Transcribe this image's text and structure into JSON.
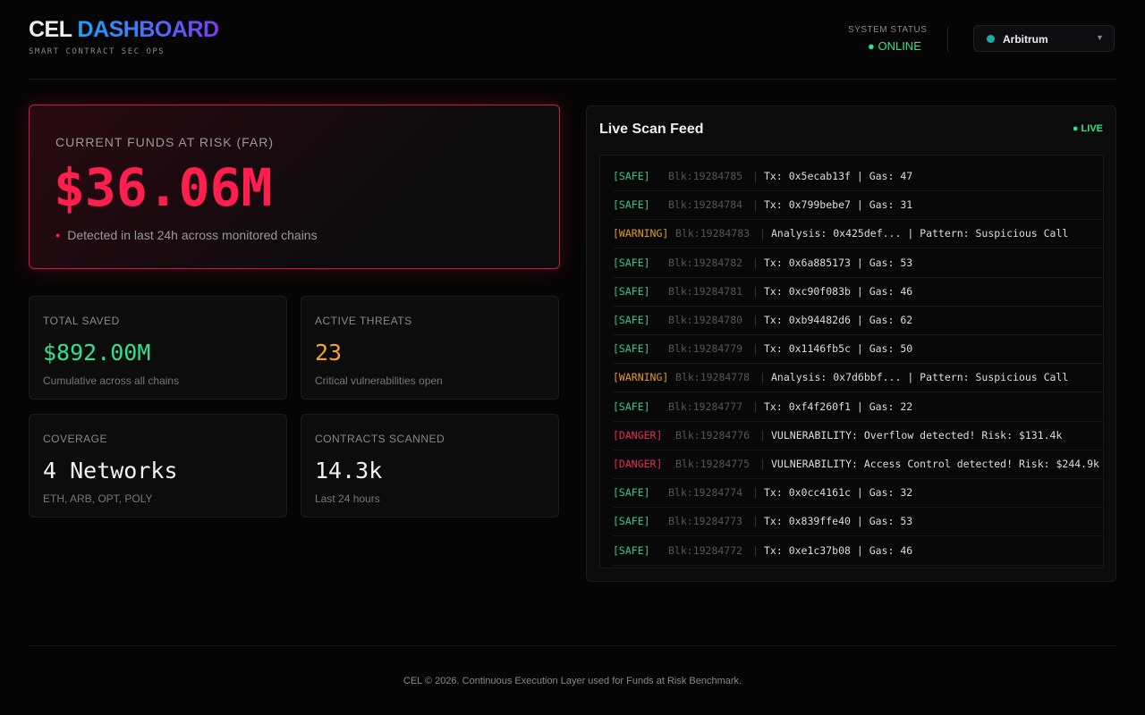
{
  "header": {
    "title_a": "CEL",
    "title_b": "DASHBOARD",
    "subtitle": "SMART CONTRACT SEC OPS",
    "status_label": "SYSTEM STATUS",
    "status_value": "ONLINE",
    "network": "Arbitrum"
  },
  "far": {
    "label": "CURRENT FUNDS AT RISK (FAR)",
    "value": "$36.06M",
    "note": "Detected in last 24h across monitored chains"
  },
  "stats": [
    {
      "label": "TOTAL SAVED",
      "value": "$892.00M",
      "note": "Cumulative across all chains",
      "color": "#2ee38f"
    },
    {
      "label": "ACTIVE THREATS",
      "value": "23",
      "note": "Critical vulnerabilities open",
      "color": "#f5a524"
    },
    {
      "label": "COVERAGE",
      "value": "4 Networks",
      "note": "ETH, ARB, OPT, POLY",
      "color": "#f2f2f2"
    },
    {
      "label": "CONTRACTS SCANNED",
      "value": "14.3k",
      "note": "Last 24 hours",
      "color": "#f2f2f2"
    }
  ],
  "feed": {
    "title": "Live Scan Feed",
    "live": "LIVE",
    "rows": [
      {
        "level": "[SAFE]",
        "block": "Blk:19284785",
        "message": "Tx: 0x5ecab13f | Gas: 47",
        "color": "#2ec98a"
      },
      {
        "level": "[SAFE]",
        "block": "Blk:19284784",
        "message": "Tx: 0x799bebe7 | Gas: 31",
        "color": "#2ec98a"
      },
      {
        "level": "[WARNING]",
        "block": "Blk:19284783",
        "message": "Analysis: 0x425def... | Pattern: Suspicious Call",
        "color": "#e39a2a"
      },
      {
        "level": "[SAFE]",
        "block": "Blk:19284782",
        "message": "Tx: 0x6a885173 | Gas: 53",
        "color": "#2ec98a"
      },
      {
        "level": "[SAFE]",
        "block": "Blk:19284781",
        "message": "Tx: 0xc90f083b | Gas: 46",
        "color": "#2ec98a"
      },
      {
        "level": "[SAFE]",
        "block": "Blk:19284780",
        "message": "Tx: 0xb94482d6 | Gas: 62",
        "color": "#2ec98a"
      },
      {
        "level": "[SAFE]",
        "block": "Blk:19284779",
        "message": "Tx: 0x1146fb5c | Gas: 50",
        "color": "#2ec98a"
      },
      {
        "level": "[WARNING]",
        "block": "Blk:19284778",
        "message": "Analysis: 0x7d6bbf... | Pattern: Suspicious Call",
        "color": "#e39a2a"
      },
      {
        "level": "[SAFE]",
        "block": "Blk:19284777",
        "message": "Tx: 0xf4f260f1 | Gas: 22",
        "color": "#2ec98a"
      },
      {
        "level": "[DANGER]",
        "block": "Blk:19284776",
        "message": "VULNERABILITY: Overflow detected! Risk: $131.4k",
        "color": "#e0304e"
      },
      {
        "level": "[DANGER]",
        "block": "Blk:19284775",
        "message": "VULNERABILITY: Access Control detected! Risk: $244.9k",
        "color": "#e0304e"
      },
      {
        "level": "[SAFE]",
        "block": "Blk:19284774",
        "message": "Tx: 0x0cc4161c | Gas: 32",
        "color": "#2ec98a"
      },
      {
        "level": "[SAFE]",
        "block": "Blk:19284773",
        "message": "Tx: 0x839ffe40 | Gas: 53",
        "color": "#2ec98a"
      },
      {
        "level": "[SAFE]",
        "block": "Blk:19284772",
        "message": "Tx: 0xe1c37b08 | Gas: 46",
        "color": "#2ec98a"
      }
    ]
  },
  "footer": "CEL © 2026. Continuous Execution Layer used for Funds at Risk Benchmark."
}
